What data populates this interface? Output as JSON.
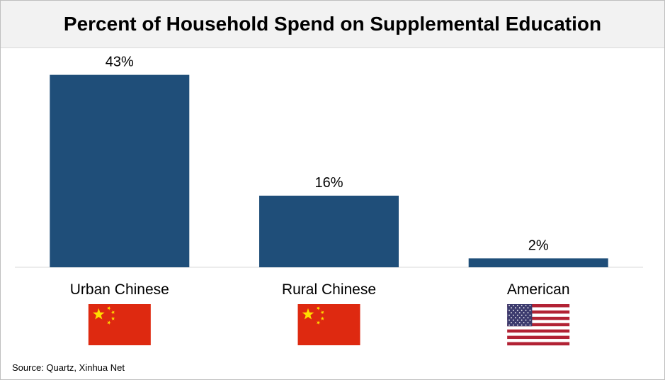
{
  "chart_data": {
    "type": "bar",
    "title": "Percent of Household Spend on Supplemental Education",
    "categories": [
      "Urban Chinese",
      "Rural Chinese",
      "American"
    ],
    "values": [
      43,
      16,
      2
    ],
    "value_labels": [
      "43%",
      "16%",
      "2%"
    ],
    "flags": [
      "china-flag-icon",
      "china-flag-icon",
      "usa-flag-icon"
    ],
    "ylim": [
      0,
      45
    ],
    "grid": false,
    "xlabel": "",
    "ylabel": "",
    "bar_color": "#1F4E79"
  },
  "source": "Source: Quartz, Xinhua Net"
}
